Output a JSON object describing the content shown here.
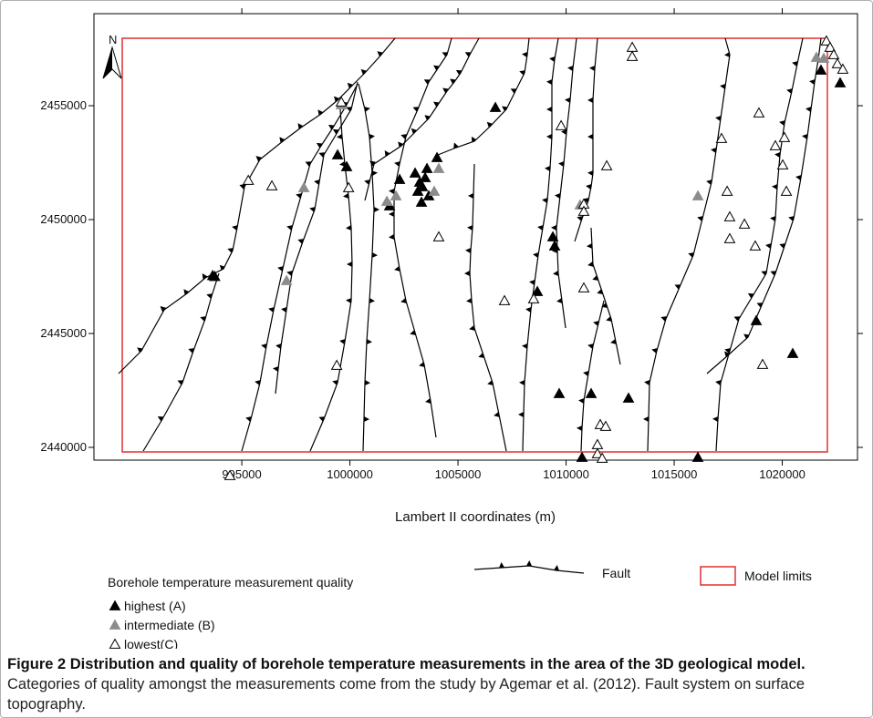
{
  "chart_data": {
    "type": "scatter",
    "x_label": "Lambert II coordinates (m)",
    "north_label": "N",
    "xlim": [
      988160,
      1023480
    ],
    "ylim": [
      2439440,
      2459040
    ],
    "xticks": [
      995000,
      1000000,
      1005000,
      1010000,
      1015000,
      1020000
    ],
    "yticks": [
      2440000,
      2445000,
      2450000,
      2455000
    ],
    "legend_title": "Borehole temperature measurement quality",
    "fault_label": "Fault",
    "model_limits_label": "Model limits",
    "model_limits_color": "#e03030",
    "series": [
      {
        "name": "highest (A)",
        "color": "#000000",
        "edgecolor": "#000000",
        "x": [
          993650,
          993750,
          999430,
          999850,
          1001835,
          1002300,
          1003016,
          1003227,
          1003354,
          1003480,
          1003565,
          1003143,
          1003311,
          1003649,
          1004029,
          1006729,
          1009387,
          1009471,
          1008670,
          1009682,
          1011159,
          1012889,
          1010737,
          1016095,
          1018795,
          1020483,
          1021791,
          1022677
        ],
        "values": [
          2447540,
          2447500,
          2452840,
          2452320,
          2450600,
          2451760,
          2452040,
          2451640,
          2451440,
          2451840,
          2452240,
          2451240,
          2450760,
          2451040,
          2452720,
          2454920,
          2449240,
          2448840,
          2446840,
          2442360,
          2442360,
          2442160,
          2439560,
          2439560,
          2445560,
          2444120,
          2456560,
          2456000
        ]
      },
      {
        "name": "intermediate (B)",
        "color": "#8c8c8c",
        "edgecolor": "#8c8c8c",
        "x": [
          999600,
          997870,
          997070,
          1001710,
          1002130,
          1004110,
          1003900,
          1010650,
          1016100,
          1021580,
          1021920
        ],
        "values": [
          2455040,
          2451400,
          2447320,
          2450800,
          2451040,
          2452240,
          2451240,
          2450640,
          2451040,
          2457120,
          2457080
        ]
      },
      {
        "name": "lowest(C)",
        "color": "#ffffff",
        "edgecolor": "#000000",
        "x": [
          995300,
          996390,
          999390,
          999940,
          999600,
          1004110,
          1007150,
          1008500,
          1009770,
          1010820,
          1010820,
          1010820,
          1011880,
          1013060,
          1013060,
          1011580,
          1011830,
          1011450,
          1011450,
          1011670,
          1017450,
          1017570,
          1017570,
          1017190,
          1018250,
          1018750,
          1019090,
          1018920,
          1019680,
          1020020,
          1020100,
          1020190,
          1022040,
          1022210,
          1022380,
          1022550,
          1022800,
          994450
        ],
        "values": [
          2451720,
          2451480,
          2443600,
          2451400,
          2455160,
          2449240,
          2446440,
          2446520,
          2454120,
          2450680,
          2450360,
          2447000,
          2452360,
          2457560,
          2457160,
          2441000,
          2440920,
          2440120,
          2439720,
          2439520,
          2451240,
          2450120,
          2449160,
          2453560,
          2449800,
          2448840,
          2443640,
          2454680,
          2453240,
          2452400,
          2453600,
          2451240,
          2457840,
          2457560,
          2457240,
          2456840,
          2456600,
          2438760
        ]
      }
    ],
    "caption": {
      "title": "Figure 2 Distribution and quality of borehole temperature measurements in the area of the 3D geological model.",
      "text": "Categories of quality amongst the measurements come from the study by Agemar et al. (2012). Fault system on surface topography."
    }
  }
}
